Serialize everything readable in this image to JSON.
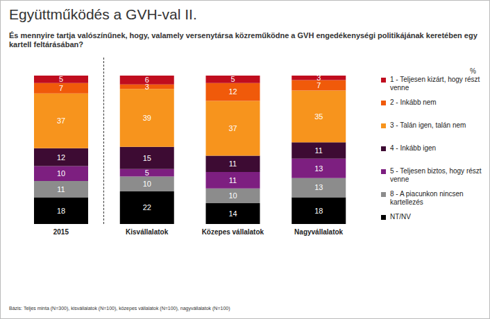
{
  "chart_data": {
    "type": "bar",
    "title": "Együttműködés a GVH-val II.",
    "subtitle": "És mennyire tartja valószínűnek, hogy, valamely versenytársa közreműködne a GVH engedékenységi politikájának keretében egy kartell feltárásában?",
    "unit_label": "%",
    "footnote": "Bázis: Teljes minta (N=300), kisvállalatok (N=100), közepes vállalatok (N=100), nagyvállalatok (N=100)",
    "categories": [
      "2015",
      "Kisvállalatok",
      "Közepes vállalatok",
      "Nagyvállalatok"
    ],
    "series": [
      {
        "name": "1 - Teljesen kizárt, hogy részt venne",
        "color": "#c00d1e",
        "values": [
          5,
          6,
          5,
          3
        ]
      },
      {
        "name": "2 - Inkább nem",
        "color": "#f05a0a",
        "values": [
          7,
          3,
          12,
          7
        ]
      },
      {
        "name": "3 - Talán igen, talán nem",
        "color": "#f7941d",
        "values": [
          37,
          39,
          37,
          35
        ]
      },
      {
        "name": "4 - Inkább igen",
        "color": "#3d0b33",
        "values": [
          12,
          15,
          11,
          11
        ]
      },
      {
        "name": "5 - Teljesen biztos, hogy részt venne",
        "color": "#7d1f80",
        "values": [
          10,
          5,
          11,
          13
        ]
      },
      {
        "name": "8 - A piacunkon nincsen kartellezés",
        "color": "#8c8c8c",
        "values": [
          11,
          10,
          10,
          13
        ]
      },
      {
        "name": "NT/NV",
        "color": "#000000",
        "values": [
          18,
          22,
          14,
          18
        ]
      }
    ],
    "stacked": true,
    "data_labels": true,
    "tick_labels": "x",
    "ylim": [
      0,
      100
    ],
    "legend": "right"
  }
}
